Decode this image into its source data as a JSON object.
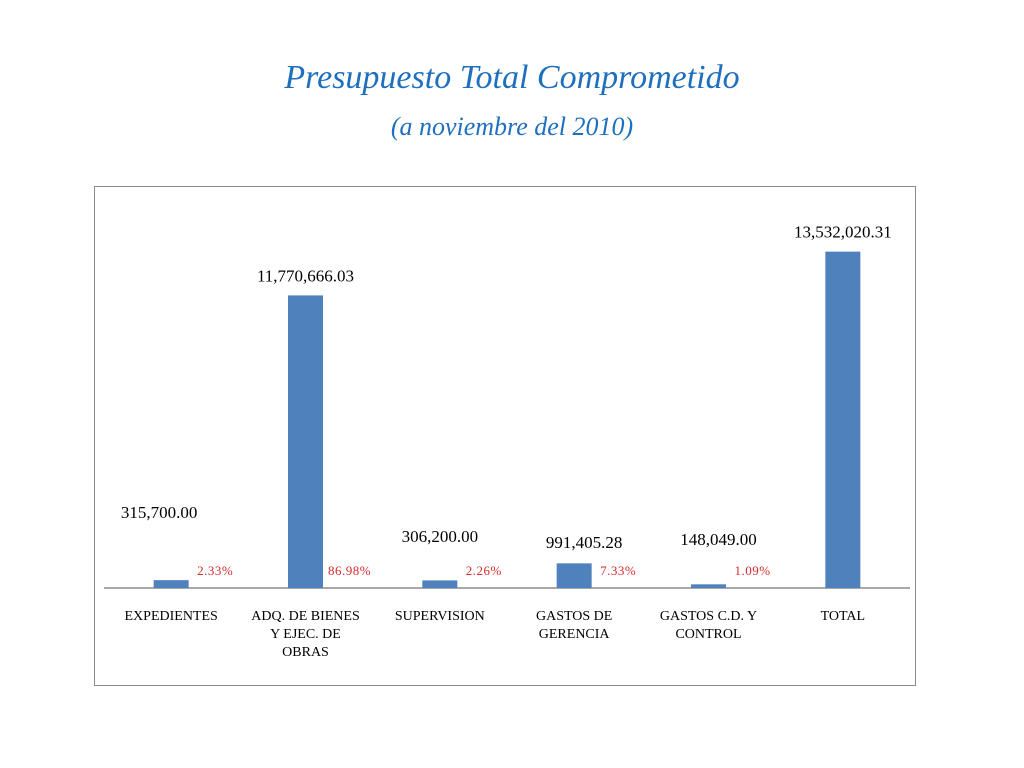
{
  "chart_data": {
    "type": "bar",
    "title": "Presupuesto Total  Comprometido",
    "subtitle": "(a noviembre del 2010)",
    "categories": [
      [
        "EXPEDIENTES"
      ],
      [
        "ADQ. DE BIENES",
        "Y EJEC. DE",
        "OBRAS"
      ],
      [
        "SUPERVISION"
      ],
      [
        "GASTOS DE",
        "GERENCIA"
      ],
      [
        "GASTOS C.D. Y",
        "CONTROL"
      ],
      [
        "TOTAL"
      ]
    ],
    "values": [
      315700.0,
      11770666.03,
      306200.0,
      991405.28,
      148049.0,
      13532020.31
    ],
    "value_labels": [
      "315,700.00",
      "11,770,666.03",
      "306,200.00",
      "991,405.28",
      "148,049.00",
      "13,532,020.31"
    ],
    "percent_labels": [
      "2.33%",
      "86.98%",
      "2.26%",
      "7.33%",
      "1.09%",
      ""
    ],
    "ylim": [
      0,
      14000000
    ],
    "xlabel": "",
    "ylabel": "",
    "grid": false,
    "legend": "none",
    "colors": {
      "bar": "#4f81bd",
      "percent": "#d62b2b",
      "title": "#1f6fbf",
      "frame": "#8c8c8c"
    }
  }
}
